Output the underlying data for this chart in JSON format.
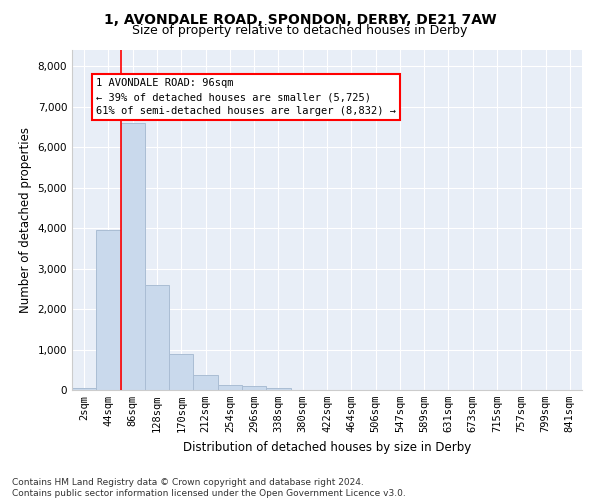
{
  "title1": "1, AVONDALE ROAD, SPONDON, DERBY, DE21 7AW",
  "title2": "Size of property relative to detached houses in Derby",
  "xlabel": "Distribution of detached houses by size in Derby",
  "ylabel": "Number of detached properties",
  "bar_color": "#c9d9ec",
  "bar_edge_color": "#aabdd4",
  "background_color": "#e8eef7",
  "grid_color": "#ffffff",
  "bin_labels": [
    "2sqm",
    "44sqm",
    "86sqm",
    "128sqm",
    "170sqm",
    "212sqm",
    "254sqm",
    "296sqm",
    "338sqm",
    "380sqm",
    "422sqm",
    "464sqm",
    "506sqm",
    "547sqm",
    "589sqm",
    "631sqm",
    "673sqm",
    "715sqm",
    "757sqm",
    "799sqm",
    "841sqm"
  ],
  "bar_values": [
    50,
    3950,
    6600,
    2600,
    900,
    380,
    130,
    100,
    50,
    0,
    0,
    0,
    0,
    0,
    0,
    0,
    0,
    0,
    0,
    0,
    0
  ],
  "red_line_x": 2,
  "annotation_line1": "1 AVONDALE ROAD: 96sqm",
  "annotation_line2": "← 39% of detached houses are smaller (5,725)",
  "annotation_line3": "61% of semi-detached houses are larger (8,832) →",
  "ylim": [
    0,
    8400
  ],
  "yticks": [
    0,
    1000,
    2000,
    3000,
    4000,
    5000,
    6000,
    7000,
    8000
  ],
  "footer": "Contains HM Land Registry data © Crown copyright and database right 2024.\nContains public sector information licensed under the Open Government Licence v3.0.",
  "title1_fontsize": 10,
  "title2_fontsize": 9,
  "xlabel_fontsize": 8.5,
  "ylabel_fontsize": 8.5,
  "footer_fontsize": 6.5,
  "tick_fontsize": 7.5,
  "annotation_fontsize": 7.5
}
